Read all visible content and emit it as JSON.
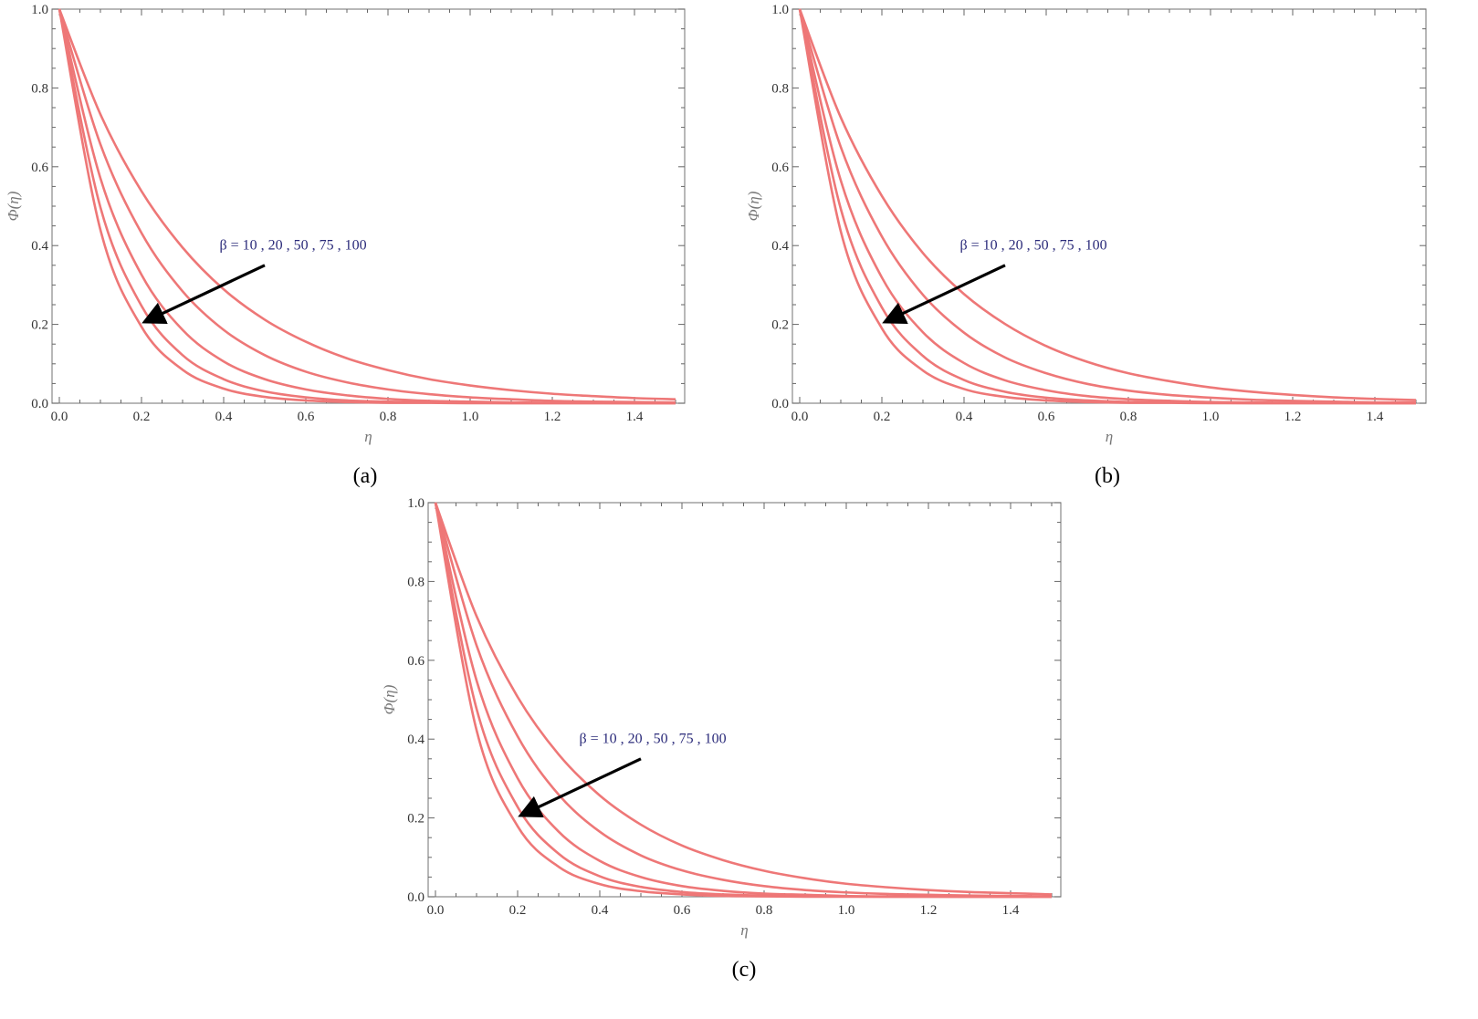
{
  "chart_data": [
    {
      "type": "line",
      "panel_label": "(a)",
      "xlabel": "η",
      "ylabel": "Φ(η)",
      "xlim": [
        0,
        1.5
      ],
      "ylim": [
        0,
        1.0
      ],
      "xticks": [
        "0.0",
        "0.2",
        "0.4",
        "0.6",
        "0.8",
        "1.0",
        "1.2",
        "1.4"
      ],
      "yticks": [
        "0.0",
        "0.2",
        "0.4",
        "0.6",
        "0.8",
        "1.0"
      ],
      "annotation": {
        "text": "β = 10 , 20 , 50 , 75 , 100",
        "text_at": [
          0.39,
          0.39
        ],
        "arrow_from": [
          0.5,
          0.35
        ],
        "arrow_to": [
          0.2,
          0.2
        ]
      },
      "color": "#ee7777",
      "x": [
        0,
        0.1,
        0.2,
        0.3,
        0.4,
        0.5,
        0.6,
        0.7,
        0.8,
        0.9,
        1.0,
        1.1,
        1.2,
        1.3,
        1.4,
        1.5
      ],
      "series": [
        {
          "name": "β = 10",
          "values": [
            1,
            0.733,
            0.538,
            0.395,
            0.289,
            0.212,
            0.156,
            0.114,
            0.084,
            0.061,
            0.045,
            0.033,
            0.024,
            0.018,
            0.013,
            0.01
          ]
        },
        {
          "name": "β = 20",
          "values": [
            1,
            0.657,
            0.432,
            0.284,
            0.186,
            0.122,
            0.08,
            0.053,
            0.035,
            0.023,
            0.015,
            0.01,
            0.006,
            0.004,
            0.003,
            0.002
          ]
        },
        {
          "name": "β = 50",
          "values": [
            1,
            0.571,
            0.326,
            0.186,
            0.106,
            0.061,
            0.035,
            0.02,
            0.011,
            0.006,
            0.004,
            0.002,
            0.001,
            0.001,
            0,
            0
          ]
        },
        {
          "name": "β = 75",
          "values": [
            1,
            0.497,
            0.247,
            0.122,
            0.061,
            0.03,
            0.015,
            0.007,
            0.004,
            0.002,
            0.001,
            0,
            0,
            0,
            0,
            0
          ]
        },
        {
          "name": "β = 100",
          "values": [
            1,
            0.44,
            0.194,
            0.085,
            0.037,
            0.016,
            0.007,
            0.003,
            0.001,
            0.001,
            0,
            0,
            0,
            0,
            0,
            0
          ]
        }
      ]
    },
    {
      "type": "line",
      "panel_label": "(b)",
      "xlabel": "η",
      "ylabel": "Φ(η)",
      "xlim": [
        0,
        1.5
      ],
      "ylim": [
        0,
        1.0
      ],
      "xticks": [
        "0.0",
        "0.2",
        "0.4",
        "0.6",
        "0.8",
        "1.0",
        "1.2",
        "1.4"
      ],
      "yticks": [
        "0.0",
        "0.2",
        "0.4",
        "0.6",
        "0.8",
        "1.0"
      ],
      "annotation": {
        "text": "β = 10 , 20 , 50 , 75 , 100",
        "text_at": [
          0.39,
          0.39
        ],
        "arrow_from": [
          0.5,
          0.35
        ],
        "arrow_to": [
          0.2,
          0.2
        ]
      },
      "color": "#ee7777",
      "x": [
        0,
        0.1,
        0.2,
        0.3,
        0.4,
        0.5,
        0.6,
        0.7,
        0.8,
        0.9,
        1.0,
        1.1,
        1.2,
        1.3,
        1.4,
        1.5
      ],
      "series": [
        {
          "name": "β = 10",
          "values": [
            1,
            0.725,
            0.526,
            0.381,
            0.277,
            0.201,
            0.145,
            0.105,
            0.076,
            0.056,
            0.04,
            0.029,
            0.021,
            0.015,
            0.011,
            0.008
          ]
        },
        {
          "name": "β = 20",
          "values": [
            1,
            0.65,
            0.423,
            0.275,
            0.179,
            0.116,
            0.076,
            0.049,
            0.032,
            0.021,
            0.014,
            0.009,
            0.006,
            0.004,
            0.002,
            0.002
          ]
        },
        {
          "name": "β = 50",
          "values": [
            1,
            0.565,
            0.319,
            0.18,
            0.102,
            0.058,
            0.033,
            0.018,
            0.01,
            0.006,
            0.003,
            0.002,
            0.001,
            0.001,
            0,
            0
          ]
        },
        {
          "name": "β = 75",
          "values": [
            1,
            0.493,
            0.243,
            0.12,
            0.059,
            0.029,
            0.014,
            0.007,
            0.003,
            0.002,
            0.001,
            0,
            0,
            0,
            0,
            0
          ]
        },
        {
          "name": "β = 100",
          "values": [
            1,
            0.436,
            0.19,
            0.083,
            0.036,
            0.016,
            0.007,
            0.003,
            0.001,
            0.001,
            0,
            0,
            0,
            0,
            0,
            0
          ]
        }
      ]
    },
    {
      "type": "line",
      "panel_label": "(c)",
      "xlabel": "η",
      "ylabel": "Φ(η)",
      "xlim": [
        0,
        1.5
      ],
      "ylim": [
        0,
        1.0
      ],
      "xticks": [
        "0.0",
        "0.2",
        "0.4",
        "0.6",
        "0.8",
        "1.0",
        "1.2",
        "1.4"
      ],
      "yticks": [
        "0.0",
        "0.2",
        "0.4",
        "0.6",
        "0.8",
        "1.0"
      ],
      "annotation": {
        "text": "β = 10 , 20 , 50 , 75 , 100",
        "text_at": [
          0.35,
          0.39
        ],
        "arrow_from": [
          0.5,
          0.35
        ],
        "arrow_to": [
          0.2,
          0.2
        ]
      },
      "color": "#ee7777",
      "x": [
        0,
        0.1,
        0.2,
        0.3,
        0.4,
        0.5,
        0.6,
        0.7,
        0.8,
        0.9,
        1.0,
        1.1,
        1.2,
        1.3,
        1.4,
        1.5
      ],
      "series": [
        {
          "name": "β = 10",
          "values": [
            1,
            0.712,
            0.507,
            0.361,
            0.257,
            0.183,
            0.13,
            0.093,
            0.066,
            0.047,
            0.033,
            0.024,
            0.017,
            0.012,
            0.009,
            0.006
          ]
        },
        {
          "name": "β = 20",
          "values": [
            1,
            0.638,
            0.407,
            0.259,
            0.165,
            0.105,
            0.067,
            0.043,
            0.027,
            0.017,
            0.011,
            0.007,
            0.005,
            0.003,
            0.002,
            0.001
          ]
        },
        {
          "name": "β = 50",
          "values": [
            1,
            0.549,
            0.301,
            0.165,
            0.091,
            0.05,
            0.027,
            0.015,
            0.008,
            0.005,
            0.002,
            0.001,
            0.001,
            0,
            0,
            0
          ]
        },
        {
          "name": "β = 75",
          "values": [
            1,
            0.477,
            0.228,
            0.109,
            0.052,
            0.025,
            0.012,
            0.006,
            0.003,
            0.001,
            0.001,
            0,
            0,
            0,
            0,
            0
          ]
        },
        {
          "name": "β = 100",
          "values": [
            1,
            0.423,
            0.179,
            0.076,
            0.032,
            0.014,
            0.006,
            0.002,
            0.001,
            0,
            0,
            0,
            0,
            0,
            0,
            0
          ]
        }
      ]
    }
  ]
}
